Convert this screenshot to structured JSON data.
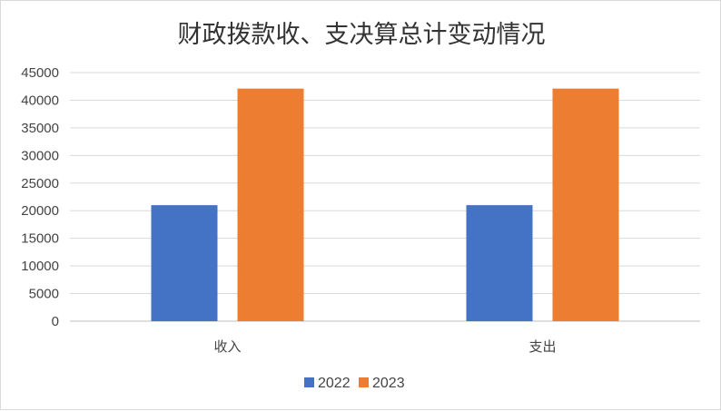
{
  "chart_data": {
    "type": "bar",
    "title": "财政拨款收、支决算总计变动情况",
    "categories": [
      "收入",
      "支出"
    ],
    "series": [
      {
        "name": "2022",
        "values": [
          21000,
          21000
        ],
        "color": "#4472C4"
      },
      {
        "name": "2023",
        "values": [
          42100,
          42100
        ],
        "color": "#ED7D31"
      }
    ],
    "ylim": [
      0,
      45000
    ],
    "yticks": [
      0,
      5000,
      10000,
      15000,
      20000,
      25000,
      30000,
      35000,
      40000,
      45000
    ],
    "grid": true,
    "legend_position": "bottom"
  }
}
